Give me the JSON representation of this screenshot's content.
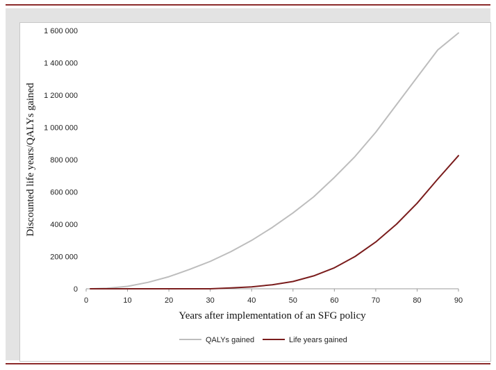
{
  "chart_data": {
    "type": "line",
    "xlabel": "Years after implementation of an SFG policy",
    "ylabel": "Discounted life years/QALYs gained",
    "xlim": [
      0,
      90
    ],
    "ylim": [
      0,
      1600000
    ],
    "x_ticks": [
      "0",
      "10",
      "20",
      "30",
      "40",
      "50",
      "60",
      "70",
      "80",
      "90"
    ],
    "y_ticks": [
      "0",
      "200 000",
      "400 000",
      "600 000",
      "800 000",
      "1 000 000",
      "1 200 000",
      "1 400 000",
      "1 600 000"
    ],
    "legend_position": "bottom",
    "grid": false,
    "series": [
      {
        "name": "QALYs gained",
        "color": "#bdbdbd",
        "x": [
          1,
          5,
          10,
          15,
          20,
          25,
          30,
          35,
          40,
          45,
          50,
          55,
          60,
          65,
          70,
          75,
          80,
          85,
          90
        ],
        "values": [
          0,
          3000,
          15000,
          40000,
          75000,
          120000,
          170000,
          230000,
          300000,
          380000,
          470000,
          570000,
          690000,
          820000,
          970000,
          1140000,
          1310000,
          1480000,
          1585000
        ]
      },
      {
        "name": "Life years gained",
        "color": "#7a1c1c",
        "x": [
          1,
          10,
          20,
          30,
          35,
          40,
          45,
          50,
          55,
          60,
          65,
          70,
          75,
          80,
          85,
          90
        ],
        "values": [
          0,
          0,
          0,
          0,
          5000,
          12000,
          25000,
          45000,
          80000,
          130000,
          200000,
          290000,
          400000,
          530000,
          680000,
          825000
        ]
      }
    ]
  }
}
